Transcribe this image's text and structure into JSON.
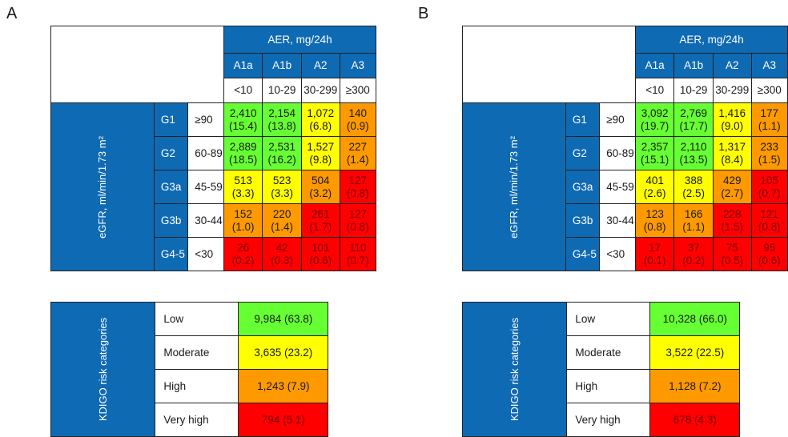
{
  "palette": {
    "green": "#66ff33",
    "yellow": "#ffff00",
    "orange": "#ff9900",
    "red": "#ff0000",
    "header_blue": "#0f6ab4"
  },
  "aer_title": "AER, mg/24h",
  "egfr_title": "eGFR, ml/min/1.73 m²",
  "risk_title": "KDIGO risk categories",
  "columns": [
    {
      "code": "A1a",
      "range": "<10"
    },
    {
      "code": "A1b",
      "range": "10-29"
    },
    {
      "code": "A2",
      "range": "30-299"
    },
    {
      "code": "A3",
      "range": "≥300"
    }
  ],
  "rows": [
    {
      "code": "G1",
      "range": "≥90",
      "colors": [
        "green",
        "green",
        "yellow",
        "orange"
      ]
    },
    {
      "code": "G2",
      "range": "60-89",
      "colors": [
        "green",
        "green",
        "yellow",
        "orange"
      ]
    },
    {
      "code": "G3a",
      "range": "45-59",
      "colors": [
        "yellow",
        "yellow",
        "orange",
        "red"
      ]
    },
    {
      "code": "G3b",
      "range": "30-44",
      "colors": [
        "orange",
        "orange",
        "red",
        "red"
      ]
    },
    {
      "code": "G4-5",
      "range": "<30",
      "colors": [
        "red",
        "red",
        "red",
        "red"
      ]
    }
  ],
  "risk_categories": [
    {
      "label": "Low",
      "color": "green"
    },
    {
      "label": "Moderate",
      "color": "yellow"
    },
    {
      "label": "High",
      "color": "orange"
    },
    {
      "label": "Very high",
      "color": "red"
    }
  ],
  "chart_data": [
    {
      "panel": "A",
      "type": "heatmap",
      "x": [
        "A1a",
        "A1b",
        "A2",
        "A3"
      ],
      "y": [
        "G1",
        "G2",
        "G3a",
        "G3b",
        "G4-5"
      ],
      "counts": [
        [
          "2,410",
          "2,154",
          "1,072",
          "140"
        ],
        [
          "2,889",
          "2,531",
          "1,527",
          "227"
        ],
        [
          "513",
          "523",
          "504",
          "127"
        ],
        [
          "152",
          "220",
          "261",
          "127"
        ],
        [
          "26",
          "42",
          "101",
          "110"
        ]
      ],
      "percents": [
        [
          "(15.4)",
          "(13.8)",
          "(6.8)",
          "(0.9)"
        ],
        [
          "(18.5)",
          "(16.2)",
          "(9.8)",
          "(1.4)"
        ],
        [
          "(3.3)",
          "(3.3)",
          "(3.2)",
          "(0.8)"
        ],
        [
          "(1.0)",
          "(1.4)",
          "(1.7)",
          "(0.8)"
        ],
        [
          "(0.2)",
          "(0.3)",
          "(0.6)",
          "(0.7)"
        ]
      ],
      "risk": [
        "9,984 (63.8)",
        "3,635 (23.2)",
        "1,243 (7.9)",
        "794 (5.1)"
      ]
    },
    {
      "panel": "B",
      "type": "heatmap",
      "x": [
        "A1a",
        "A1b",
        "A2",
        "A3"
      ],
      "y": [
        "G1",
        "G2",
        "G3a",
        "G3b",
        "G4-5"
      ],
      "counts": [
        [
          "3,092",
          "2,769",
          "1,416",
          "177"
        ],
        [
          "2,357",
          "2,110",
          "1,317",
          "233"
        ],
        [
          "401",
          "388",
          "429",
          "105"
        ],
        [
          "123",
          "166",
          "228",
          "121"
        ],
        [
          "17",
          "37",
          "75",
          "95"
        ]
      ],
      "percents": [
        [
          "(19.7)",
          "(17.7)",
          "(9.0)",
          "(1.1)"
        ],
        [
          "(15.1)",
          "(13.5)",
          "(8.4)",
          "(1.5)"
        ],
        [
          "(2.6)",
          "(2.5)",
          "(2.7)",
          "(0.7)"
        ],
        [
          "(0.8)",
          "(1.1)",
          "(1.5)",
          "(0.8)"
        ],
        [
          "(0.1)",
          "(0.2)",
          "(0.5)",
          "(0.6)"
        ]
      ],
      "risk": [
        "10,328 (66.0)",
        "3,522 (22.5)",
        "1,128 (7.2)",
        "678 (4.3)"
      ]
    }
  ]
}
